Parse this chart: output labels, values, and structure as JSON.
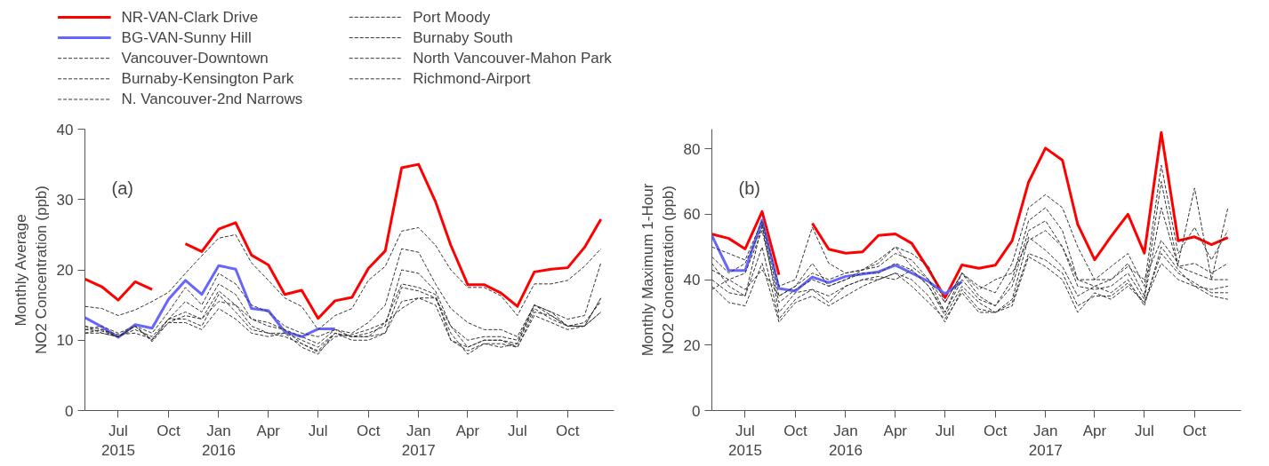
{
  "chart_data": [
    {
      "type": "line",
      "xlabel": null,
      "ylabel": "Monthly Average\nNO2 Concentration (ppb)",
      "annotations": [
        "(a)"
      ],
      "legend": "top",
      "grid": false,
      "x": [
        "2015-05",
        "2015-06",
        "2015-07",
        "2015-08",
        "2015-09",
        "2015-10",
        "2015-11",
        "2015-12",
        "2016-01",
        "2016-02",
        "2016-03",
        "2016-04",
        "2016-05",
        "2016-06",
        "2016-07",
        "2016-08",
        "2016-09",
        "2016-10",
        "2016-11",
        "2016-12",
        "2017-01",
        "2017-02",
        "2017-03",
        "2017-04",
        "2017-05",
        "2017-06",
        "2017-07",
        "2017-08",
        "2017-09",
        "2017-10",
        "2017-11",
        "2017-12"
      ],
      "xlim": [
        "2015-05-01",
        "2017-12-25"
      ],
      "xticks": [
        {
          "value": "2015-07",
          "label": "Jul\n2015"
        },
        {
          "value": "2015-10",
          "label": "Oct"
        },
        {
          "value": "2016-01",
          "label": "Jan\n2016"
        },
        {
          "value": "2016-04",
          "label": "Apr"
        },
        {
          "value": "2016-07",
          "label": "Jul"
        },
        {
          "value": "2016-10",
          "label": "Oct"
        },
        {
          "value": "2017-01",
          "label": "Jan\n2017"
        },
        {
          "value": "2017-04",
          "label": "Apr"
        },
        {
          "value": "2017-07",
          "label": "Jul"
        },
        {
          "value": "2017-10",
          "label": "Oct"
        }
      ],
      "ylim": [
        0,
        40
      ],
      "yticks": [
        0,
        10,
        20,
        30,
        40
      ],
      "series": [
        {
          "name": "NR-VAN-Clark Drive",
          "color": "#ff0000",
          "line_style": "solid",
          "values": [
            18.7,
            17.6,
            15.7,
            18.3,
            17.2,
            null,
            23.7,
            22.6,
            25.8,
            26.7,
            22.1,
            20.7,
            16.5,
            17.1,
            13.1,
            15.6,
            16.1,
            20.2,
            22.7,
            34.5,
            35.0,
            29.7,
            23.5,
            17.9,
            17.9,
            16.7,
            14.8,
            19.7,
            20.1,
            20.3,
            23.2,
            27.2
          ]
        },
        {
          "name": "BG-VAN-Sunny Hill",
          "color": "#6666ff",
          "line_style": "solid",
          "values": [
            13.2,
            11.9,
            10.4,
            12.2,
            11.7,
            15.8,
            18.5,
            16.5,
            20.6,
            20.1,
            14.5,
            14.2,
            11.2,
            10.5,
            11.6,
            11.6,
            null,
            null,
            null,
            null,
            null,
            null,
            null,
            null,
            null,
            null,
            null,
            null,
            null,
            null,
            null,
            null
          ]
        },
        {
          "name": "Vancouver-Downtown",
          "color": "#333333",
          "line_style": "dashed",
          "values": [
            14.8,
            14.5,
            13.5,
            14.3,
            15.5,
            16.8,
            19.5,
            22,
            24.5,
            25,
            21,
            18.5,
            16,
            14.8,
            11.5,
            13.5,
            14.5,
            18.5,
            20.5,
            25.5,
            26,
            23.5,
            20,
            17.5,
            17.5,
            16.3,
            13.5,
            18,
            18,
            18.5,
            20.5,
            23
          ]
        },
        {
          "name": "Burnaby-Kensington Park",
          "color": "#333333",
          "line_style": "dashed",
          "values": [
            11.5,
            12,
            11,
            12,
            10,
            13,
            15.5,
            14,
            18,
            16.5,
            13,
            12.5,
            11.5,
            10.5,
            9.5,
            11.5,
            10.5,
            10.5,
            12.5,
            18,
            17.5,
            16.5,
            10,
            8.5,
            9.5,
            9.5,
            9,
            14,
            13.5,
            12,
            12,
            16
          ]
        },
        {
          "name": "N. Vancouver-2nd Narrows",
          "color": "#333333",
          "line_style": "dashed",
          "values": [
            12,
            11.5,
            10.5,
            12,
            11,
            14,
            17.5,
            15,
            19.5,
            18,
            15,
            14,
            12,
            11,
            10.5,
            11.5,
            11,
            12.5,
            15,
            23,
            22.5,
            18,
            14.5,
            12.5,
            11.5,
            11.5,
            10.5,
            15,
            14,
            13,
            13.5,
            21
          ]
        },
        {
          "name": "Port Moody",
          "color": "#333333",
          "line_style": "dashed",
          "values": [
            11,
            11,
            10.5,
            12,
            9.8,
            12.5,
            12.5,
            11.5,
            14.5,
            13,
            11,
            10.5,
            11,
            9,
            8,
            11,
            10.5,
            10.5,
            11,
            15.5,
            16,
            15,
            10,
            9,
            10,
            10,
            9.5,
            14.5,
            13,
            12,
            12,
            14
          ]
        },
        {
          "name": "Burnaby South",
          "color": "#333333",
          "line_style": "dashed",
          "values": [
            11.5,
            11.3,
            10.5,
            12,
            10,
            13,
            13,
            12,
            16.5,
            14,
            11.5,
            11,
            10.5,
            9.5,
            8.5,
            11,
            10,
            10,
            11,
            17.5,
            17,
            16,
            11,
            8,
            9.5,
            9,
            9.5,
            15,
            13.5,
            12,
            12.5,
            15.5
          ]
        },
        {
          "name": "North Vancouver-Mahon Park",
          "color": "#333333",
          "line_style": "dashed",
          "values": [
            12,
            11,
            10.5,
            11.5,
            10.5,
            13,
            14,
            13,
            17,
            15,
            12,
            11,
            11,
            10,
            9,
            11,
            10.5,
            11,
            12,
            20,
            19.5,
            17,
            12,
            10,
            10.5,
            10.5,
            10,
            15,
            14,
            12,
            12,
            14
          ]
        },
        {
          "name": "Richmond-Airport",
          "color": "#333333",
          "line_style": "dashed",
          "values": [
            11,
            11.5,
            10.8,
            11,
            10.2,
            12.5,
            13.5,
            13,
            15.5,
            15,
            13,
            12,
            11.5,
            9.5,
            8.3,
            10.5,
            10.8,
            11.5,
            12.5,
            14.5,
            16,
            16,
            12,
            9,
            10,
            10,
            9,
            13.5,
            12.5,
            11.5,
            12,
            16
          ]
        }
      ]
    },
    {
      "type": "line",
      "xlabel": null,
      "ylabel": "Monthly Maximum 1-Hour\nNO2 Concentration (ppb)",
      "annotations": [
        "(b)"
      ],
      "grid": false,
      "x": [
        "2015-05",
        "2015-06",
        "2015-07",
        "2015-08",
        "2015-09",
        "2015-10",
        "2015-11",
        "2015-12",
        "2016-01",
        "2016-02",
        "2016-03",
        "2016-04",
        "2016-05",
        "2016-06",
        "2016-07",
        "2016-08",
        "2016-09",
        "2016-10",
        "2016-11",
        "2016-12",
        "2017-01",
        "2017-02",
        "2017-03",
        "2017-04",
        "2017-05",
        "2017-06",
        "2017-07",
        "2017-08",
        "2017-09",
        "2017-10",
        "2017-11",
        "2017-12"
      ],
      "xlim": [
        "2015-05-01",
        "2017-12-25"
      ],
      "xticks": [
        {
          "value": "2015-07",
          "label": "Jul\n2015"
        },
        {
          "value": "2015-10",
          "label": "Oct"
        },
        {
          "value": "2016-01",
          "label": "Jan\n2016"
        },
        {
          "value": "2016-04",
          "label": "Apr"
        },
        {
          "value": "2016-07",
          "label": "Jul"
        },
        {
          "value": "2016-10",
          "label": "Oct"
        },
        {
          "value": "2017-01",
          "label": "Jan\n2017"
        },
        {
          "value": "2017-04",
          "label": "Apr"
        },
        {
          "value": "2017-07",
          "label": "Jul"
        },
        {
          "value": "2017-10",
          "label": "Oct"
        }
      ],
      "ylim": [
        0,
        86
      ],
      "yticks": [
        0,
        20,
        40,
        60,
        80
      ],
      "series": [
        {
          "color": "#ff0000",
          "line_style": "solid",
          "values": [
            53.9,
            52.6,
            49.4,
            60.8,
            41.5,
            null,
            57.2,
            49.3,
            48.1,
            48.5,
            53.5,
            54.0,
            51.1,
            43.1,
            34.5,
            44.5,
            43.5,
            44.4,
            51.9,
            69.8,
            80.2,
            76.5,
            56.9,
            46.1,
            53.2,
            60,
            48.1,
            85,
            51.9,
            53.1,
            50.7,
            52.9
          ]
        },
        {
          "color": "#6666ff",
          "line_style": "solid",
          "values": [
            53.5,
            42.8,
            42.8,
            58.2,
            37.3,
            36.5,
            40.8,
            39.1,
            41,
            41.7,
            42.4,
            44.4,
            42,
            39.4,
            35.7,
            39.4,
            null,
            null,
            null,
            null,
            null,
            null,
            null,
            null,
            null,
            null,
            null,
            null,
            null,
            null,
            null,
            null
          ]
        },
        {
          "color": "#333333",
          "line_style": "dashed",
          "values": [
            50,
            48,
            46,
            58,
            38,
            40,
            56,
            45,
            42,
            43,
            46,
            50,
            48,
            44,
            33,
            42,
            38,
            36,
            45,
            62,
            66,
            62,
            50,
            40,
            44,
            48,
            38,
            75,
            48,
            56,
            46,
            55
          ]
        },
        {
          "color": "#333333",
          "line_style": "dashed",
          "values": [
            45,
            38,
            35,
            57,
            30,
            36,
            37,
            33,
            38,
            40,
            41,
            40,
            43,
            38,
            29,
            38,
            33,
            30,
            34,
            53,
            49,
            44,
            35,
            38,
            36,
            40,
            32,
            50,
            43,
            38,
            37,
            38
          ]
        },
        {
          "color": "#333333",
          "line_style": "dashed",
          "values": [
            47,
            42,
            45,
            56,
            35,
            38,
            42,
            40,
            42,
            43,
            44,
            48,
            46,
            40,
            30,
            42,
            35,
            32,
            40,
            58,
            62,
            55,
            40,
            38,
            40,
            45,
            35,
            70,
            44,
            45,
            42,
            45
          ]
        },
        {
          "color": "#333333",
          "line_style": "dashed",
          "values": [
            38,
            33,
            32,
            45,
            27,
            33,
            35,
            32,
            35,
            38,
            40,
            42,
            38,
            33,
            28,
            36,
            30,
            30,
            32,
            47,
            44,
            40,
            30,
            36,
            34,
            38,
            33,
            45,
            40,
            38,
            35,
            34
          ]
        },
        {
          "color": "#333333",
          "line_style": "dashed",
          "values": [
            40,
            36,
            35,
            50,
            28,
            34,
            37,
            35,
            38,
            40,
            40,
            42,
            40,
            35,
            27,
            37,
            31,
            30,
            33,
            48,
            46,
            42,
            32,
            35,
            35,
            39,
            33,
            48,
            42,
            39,
            36,
            36
          ]
        },
        {
          "color": "#333333",
          "line_style": "dashed",
          "values": [
            43,
            40,
            42,
            55,
            33,
            37,
            40,
            38,
            40,
            42,
            42,
            45,
            43,
            38,
            30,
            40,
            34,
            32,
            38,
            55,
            58,
            50,
            38,
            37,
            38,
            42,
            34,
            62,
            44,
            42,
            40,
            40
          ]
        },
        {
          "color": "#333333",
          "line_style": "dashed",
          "values": [
            37,
            40,
            37,
            43,
            35,
            38,
            45,
            38,
            40,
            43,
            45,
            50,
            44,
            40,
            33,
            42,
            37,
            40,
            42,
            52,
            55,
            50,
            40,
            40,
            40,
            44,
            40,
            52,
            45,
            68,
            40,
            62
          ]
        }
      ]
    }
  ]
}
